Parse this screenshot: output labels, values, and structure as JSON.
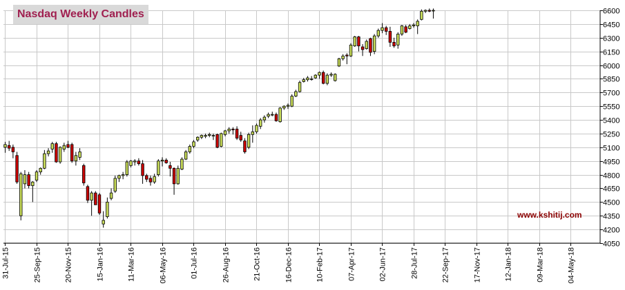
{
  "chart_data": {
    "type": "candlestick",
    "title": "Nasdaq Weekly Candles",
    "watermark": "www.kshitij.com",
    "xlabel": "",
    "ylabel": "",
    "ylim": [
      4050,
      6600
    ],
    "y_ticks": [
      4050,
      4200,
      4350,
      4500,
      4650,
      4800,
      4950,
      5100,
      5250,
      5400,
      5550,
      5700,
      5850,
      6000,
      6150,
      6300,
      6450,
      6600
    ],
    "x_tick_labels": [
      "31-Jul-15",
      "25-Sep-15",
      "20-Nov-15",
      "15-Jan-16",
      "11-Mar-16",
      "06-May-16",
      "01-Jul-16",
      "26-Aug-16",
      "21-Oct-16",
      "16-Dec-16",
      "10-Feb-17",
      "07-Apr-17",
      "02-Jun-17",
      "28-Jul-17",
      "22-Sep-17",
      "17-Nov-17",
      "12-Jan-18",
      "09-Mar-18",
      "04-May-18"
    ],
    "grid": true,
    "colors": {
      "up": "#c8dc5a",
      "down": "#cc0000",
      "outline": "#000000",
      "grid": "#c8c8c8",
      "title_text": "#a02050",
      "watermark": "#8b0000"
    },
    "candles": [
      {
        "o": 5100,
        "h": 5160,
        "l": 5040,
        "c": 5130
      },
      {
        "o": 5120,
        "h": 5170,
        "l": 5060,
        "c": 5090
      },
      {
        "o": 5100,
        "h": 5130,
        "l": 4980,
        "c": 5050
      },
      {
        "o": 5010,
        "h": 5050,
        "l": 4700,
        "c": 4720
      },
      {
        "o": 4350,
        "h": 4830,
        "l": 4300,
        "c": 4810
      },
      {
        "o": 4700,
        "h": 4850,
        "l": 4650,
        "c": 4800
      },
      {
        "o": 4800,
        "h": 4830,
        "l": 4650,
        "c": 4680
      },
      {
        "o": 4680,
        "h": 4730,
        "l": 4500,
        "c": 4720
      },
      {
        "o": 4740,
        "h": 4850,
        "l": 4720,
        "c": 4830
      },
      {
        "o": 4830,
        "h": 4880,
        "l": 4800,
        "c": 4870
      },
      {
        "o": 4870,
        "h": 5070,
        "l": 4860,
        "c": 5030
      },
      {
        "o": 5030,
        "h": 5090,
        "l": 5000,
        "c": 5060
      },
      {
        "o": 5080,
        "h": 5160,
        "l": 5040,
        "c": 5140
      },
      {
        "o": 5140,
        "h": 5160,
        "l": 4930,
        "c": 4940
      },
      {
        "o": 4940,
        "h": 5110,
        "l": 4920,
        "c": 5100
      },
      {
        "o": 5080,
        "h": 5150,
        "l": 5050,
        "c": 5120
      },
      {
        "o": 5130,
        "h": 5170,
        "l": 5090,
        "c": 5100
      },
      {
        "o": 5130,
        "h": 5150,
        "l": 4930,
        "c": 4950
      },
      {
        "o": 4950,
        "h": 5050,
        "l": 4900,
        "c": 5010
      },
      {
        "o": 4990,
        "h": 5090,
        "l": 4960,
        "c": 5050
      },
      {
        "o": 4900,
        "h": 4920,
        "l": 4680,
        "c": 4710
      },
      {
        "o": 4670,
        "h": 4690,
        "l": 4490,
        "c": 4520
      },
      {
        "o": 4520,
        "h": 4620,
        "l": 4350,
        "c": 4600
      },
      {
        "o": 4600,
        "h": 4620,
        "l": 4470,
        "c": 4470
      },
      {
        "o": 4580,
        "h": 4600,
        "l": 4360,
        "c": 4380
      },
      {
        "o": 4260,
        "h": 4400,
        "l": 4220,
        "c": 4300
      },
      {
        "o": 4340,
        "h": 4550,
        "l": 4320,
        "c": 4500
      },
      {
        "o": 4540,
        "h": 4650,
        "l": 4520,
        "c": 4600
      },
      {
        "o": 4620,
        "h": 4790,
        "l": 4600,
        "c": 4760
      },
      {
        "o": 4760,
        "h": 4800,
        "l": 4720,
        "c": 4790
      },
      {
        "o": 4790,
        "h": 4830,
        "l": 4750,
        "c": 4800
      },
      {
        "o": 4800,
        "h": 4960,
        "l": 4780,
        "c": 4940
      },
      {
        "o": 4900,
        "h": 4960,
        "l": 4880,
        "c": 4950
      },
      {
        "o": 4940,
        "h": 4970,
        "l": 4900,
        "c": 4950
      },
      {
        "o": 4950,
        "h": 4980,
        "l": 4900,
        "c": 4920
      },
      {
        "o": 4920,
        "h": 4960,
        "l": 4700,
        "c": 4790
      },
      {
        "o": 4790,
        "h": 4810,
        "l": 4720,
        "c": 4750
      },
      {
        "o": 4760,
        "h": 4790,
        "l": 4680,
        "c": 4720
      },
      {
        "o": 4720,
        "h": 4810,
        "l": 4700,
        "c": 4780
      },
      {
        "o": 4800,
        "h": 4970,
        "l": 4780,
        "c": 4950
      },
      {
        "o": 4950,
        "h": 4990,
        "l": 4890,
        "c": 4960
      },
      {
        "o": 4960,
        "h": 4980,
        "l": 4920,
        "c": 4930
      },
      {
        "o": 4900,
        "h": 4940,
        "l": 4780,
        "c": 4870
      },
      {
        "o": 4870,
        "h": 4880,
        "l": 4580,
        "c": 4700
      },
      {
        "o": 4700,
        "h": 4900,
        "l": 4690,
        "c": 4870
      },
      {
        "o": 4860,
        "h": 4990,
        "l": 4850,
        "c": 4970
      },
      {
        "o": 4970,
        "h": 5070,
        "l": 4960,
        "c": 5050
      },
      {
        "o": 5050,
        "h": 5130,
        "l": 5030,
        "c": 5110
      },
      {
        "o": 5110,
        "h": 5180,
        "l": 5090,
        "c": 5160
      },
      {
        "o": 5180,
        "h": 5220,
        "l": 5160,
        "c": 5210
      },
      {
        "o": 5210,
        "h": 5240,
        "l": 5190,
        "c": 5230
      },
      {
        "o": 5220,
        "h": 5250,
        "l": 5200,
        "c": 5230
      },
      {
        "o": 5230,
        "h": 5260,
        "l": 5210,
        "c": 5240
      },
      {
        "o": 5230,
        "h": 5250,
        "l": 5180,
        "c": 5230
      },
      {
        "o": 5240,
        "h": 5250,
        "l": 5090,
        "c": 5100
      },
      {
        "o": 5110,
        "h": 5260,
        "l": 5100,
        "c": 5250
      },
      {
        "o": 5240,
        "h": 5290,
        "l": 5220,
        "c": 5280
      },
      {
        "o": 5280,
        "h": 5320,
        "l": 5250,
        "c": 5300
      },
      {
        "o": 5300,
        "h": 5320,
        "l": 5240,
        "c": 5290
      },
      {
        "o": 5300,
        "h": 5330,
        "l": 5180,
        "c": 5200
      },
      {
        "o": 5230,
        "h": 5270,
        "l": 5160,
        "c": 5180
      },
      {
        "o": 5170,
        "h": 5200,
        "l": 5030,
        "c": 5050
      },
      {
        "o": 5100,
        "h": 5260,
        "l": 5080,
        "c": 5240
      },
      {
        "o": 5240,
        "h": 5340,
        "l": 5150,
        "c": 5270
      },
      {
        "o": 5270,
        "h": 5360,
        "l": 5250,
        "c": 5340
      },
      {
        "o": 5330,
        "h": 5420,
        "l": 5300,
        "c": 5400
      },
      {
        "o": 5400,
        "h": 5450,
        "l": 5370,
        "c": 5430
      },
      {
        "o": 5440,
        "h": 5480,
        "l": 5420,
        "c": 5460
      },
      {
        "o": 5460,
        "h": 5490,
        "l": 5440,
        "c": 5460
      },
      {
        "o": 5460,
        "h": 5480,
        "l": 5380,
        "c": 5390
      },
      {
        "o": 5380,
        "h": 5540,
        "l": 5370,
        "c": 5530
      },
      {
        "o": 5530,
        "h": 5560,
        "l": 5510,
        "c": 5550
      },
      {
        "o": 5550,
        "h": 5580,
        "l": 5520,
        "c": 5560
      },
      {
        "o": 5550,
        "h": 5680,
        "l": 5540,
        "c": 5660
      },
      {
        "o": 5660,
        "h": 5730,
        "l": 5650,
        "c": 5710
      },
      {
        "o": 5710,
        "h": 5830,
        "l": 5700,
        "c": 5810
      },
      {
        "o": 5820,
        "h": 5860,
        "l": 5810,
        "c": 5840
      },
      {
        "o": 5840,
        "h": 5880,
        "l": 5820,
        "c": 5860
      },
      {
        "o": 5850,
        "h": 5880,
        "l": 5830,
        "c": 5850
      },
      {
        "o": 5860,
        "h": 5900,
        "l": 5850,
        "c": 5890
      },
      {
        "o": 5890,
        "h": 5930,
        "l": 5850,
        "c": 5920
      },
      {
        "o": 5920,
        "h": 5940,
        "l": 5790,
        "c": 5800
      },
      {
        "o": 5800,
        "h": 5910,
        "l": 5780,
        "c": 5890
      },
      {
        "o": 5890,
        "h": 5920,
        "l": 5870,
        "c": 5900
      },
      {
        "o": 5830,
        "h": 5910,
        "l": 5820,
        "c": 5900
      },
      {
        "o": 5990,
        "h": 6080,
        "l": 5980,
        "c": 6070
      },
      {
        "o": 6070,
        "h": 6120,
        "l": 6050,
        "c": 6100
      },
      {
        "o": 6110,
        "h": 6130,
        "l": 6010,
        "c": 6100
      },
      {
        "o": 6100,
        "h": 6240,
        "l": 6090,
        "c": 6220
      },
      {
        "o": 6210,
        "h": 6320,
        "l": 6200,
        "c": 6310
      },
      {
        "o": 6310,
        "h": 6320,
        "l": 6150,
        "c": 6210
      },
      {
        "o": 6200,
        "h": 6230,
        "l": 6100,
        "c": 6170
      },
      {
        "o": 6180,
        "h": 6280,
        "l": 6170,
        "c": 6260
      },
      {
        "o": 6290,
        "h": 6300,
        "l": 6100,
        "c": 6140
      },
      {
        "o": 6150,
        "h": 6340,
        "l": 6120,
        "c": 6320
      },
      {
        "o": 6320,
        "h": 6400,
        "l": 6300,
        "c": 6380
      },
      {
        "o": 6380,
        "h": 6460,
        "l": 6350,
        "c": 6410
      },
      {
        "o": 6410,
        "h": 6430,
        "l": 6330,
        "c": 6370
      },
      {
        "o": 6370,
        "h": 6420,
        "l": 6200,
        "c": 6250
      },
      {
        "o": 6250,
        "h": 6300,
        "l": 6190,
        "c": 6210
      },
      {
        "o": 6220,
        "h": 6360,
        "l": 6180,
        "c": 6340
      },
      {
        "o": 6340,
        "h": 6440,
        "l": 6320,
        "c": 6430
      },
      {
        "o": 6420,
        "h": 6440,
        "l": 6350,
        "c": 6360
      },
      {
        "o": 6400,
        "h": 6450,
        "l": 6390,
        "c": 6430
      },
      {
        "o": 6430,
        "h": 6460,
        "l": 6410,
        "c": 6440
      },
      {
        "o": 6430,
        "h": 6500,
        "l": 6340,
        "c": 6480
      },
      {
        "o": 6500,
        "h": 6610,
        "l": 6490,
        "c": 6590
      },
      {
        "o": 6590,
        "h": 6610,
        "l": 6570,
        "c": 6600
      },
      {
        "o": 6600,
        "h": 6620,
        "l": 6580,
        "c": 6590
      },
      {
        "o": 6600,
        "h": 6620,
        "l": 6510,
        "c": 6600
      }
    ]
  }
}
